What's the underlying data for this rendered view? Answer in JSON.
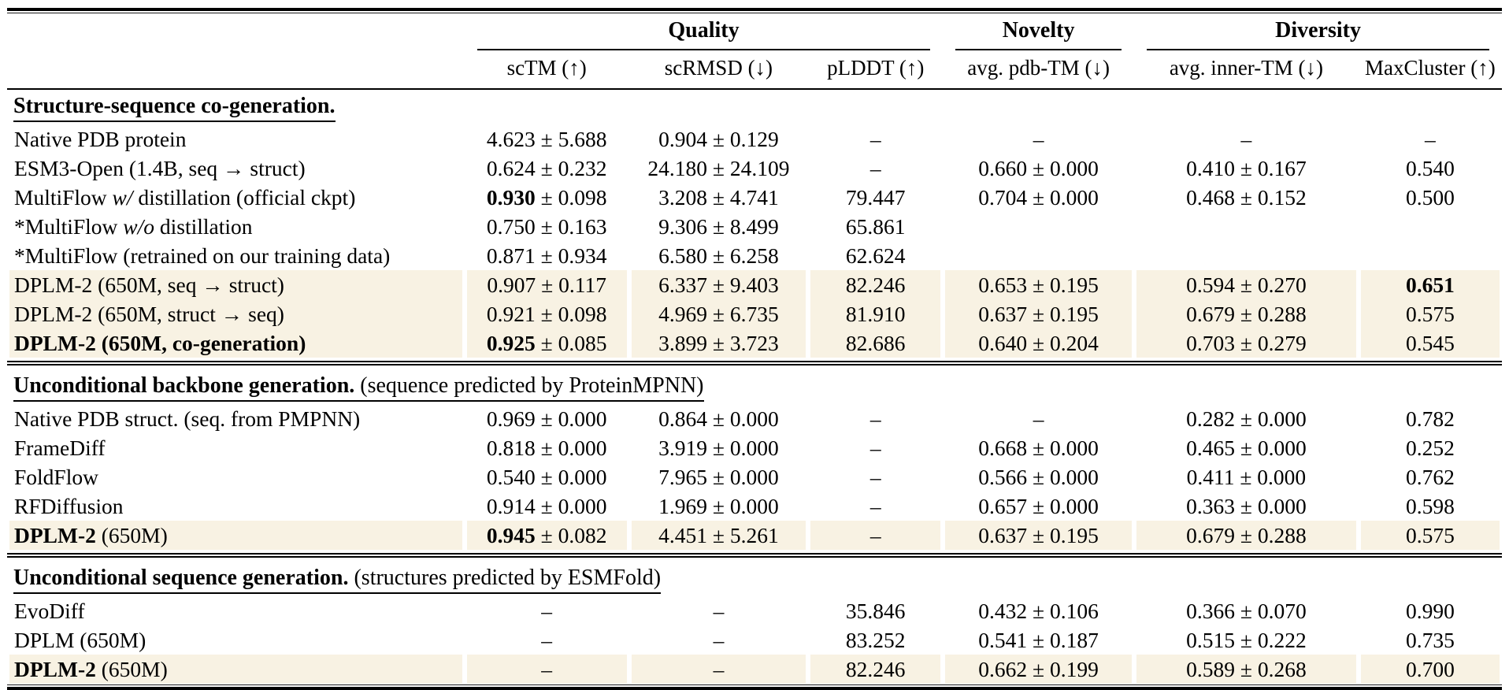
{
  "colors": {
    "highlight": "#f8f2e3",
    "rule": "#000000",
    "background": "#ffffff"
  },
  "table": {
    "groups": [
      {
        "label": "Quality",
        "span": 3
      },
      {
        "label": "Novelty",
        "span": 1
      },
      {
        "label": "Diversity",
        "span": 2
      }
    ],
    "columns": [
      "scTM (↑)",
      "scRMSD (↓)",
      "pLDDT (↑)",
      "avg. pdb-TM (↓)",
      "avg. inner-TM (↓)",
      "MaxCluster (↑)"
    ],
    "sections": [
      {
        "title": [
          {
            "t": "Structure-sequence co-generation.",
            "b": true
          }
        ],
        "rows": [
          {
            "name": [
              {
                "t": "Native PDB protein"
              }
            ],
            "hl": false,
            "cells": [
              {
                "v": "4.623",
                "pm": "5.688"
              },
              {
                "v": "0.904",
                "pm": "0.129"
              },
              {
                "v": "–"
              },
              {
                "v": "–"
              },
              {
                "v": "–"
              },
              {
                "v": "–"
              }
            ]
          },
          {
            "name": [
              {
                "t": "ESM3-Open (1.4B, seq → struct)"
              }
            ],
            "hl": false,
            "cells": [
              {
                "v": "0.624",
                "pm": "0.232"
              },
              {
                "v": "24.180",
                "pm": "24.109"
              },
              {
                "v": "–"
              },
              {
                "v": "0.660",
                "pm": "0.000"
              },
              {
                "v": "0.410",
                "pm": "0.167"
              },
              {
                "v": "0.540"
              }
            ]
          },
          {
            "name": [
              {
                "t": "MultiFlow "
              },
              {
                "t": "w/",
                "i": true
              },
              {
                "t": " distillation (official ckpt)"
              }
            ],
            "hl": false,
            "cells": [
              {
                "v": "0.930",
                "pm": "0.098",
                "vb": true
              },
              {
                "v": "3.208",
                "pm": "4.741"
              },
              {
                "v": "79.447"
              },
              {
                "v": "0.704",
                "pm": "0.000"
              },
              {
                "v": "0.468",
                "pm": "0.152"
              },
              {
                "v": "0.500"
              }
            ]
          },
          {
            "name": [
              {
                "t": "*MultiFlow "
              },
              {
                "t": "w/o",
                "i": true
              },
              {
                "t": " distillation"
              }
            ],
            "hl": false,
            "cells": [
              {
                "v": "0.750",
                "pm": "0.163"
              },
              {
                "v": "9.306",
                "pm": "8.499"
              },
              {
                "v": "65.861"
              },
              null,
              null,
              null
            ]
          },
          {
            "name": [
              {
                "t": "*MultiFlow (retrained on our training data)"
              }
            ],
            "hl": false,
            "cells": [
              {
                "v": "0.871",
                "pm": "0.934"
              },
              {
                "v": "6.580",
                "pm": "6.258"
              },
              {
                "v": "62.624"
              },
              null,
              null,
              null
            ]
          },
          {
            "name": [
              {
                "t": "DPLM-2 (650M, seq → struct)"
              }
            ],
            "hl": true,
            "cells": [
              {
                "v": "0.907",
                "pm": "0.117"
              },
              {
                "v": "6.337",
                "pm": "9.403"
              },
              {
                "v": "82.246"
              },
              {
                "v": "0.653",
                "pm": "0.195"
              },
              {
                "v": "0.594",
                "pm": "0.270"
              },
              {
                "v": "0.651",
                "vb": true
              }
            ]
          },
          {
            "name": [
              {
                "t": "DPLM-2 (650M, struct → seq)"
              }
            ],
            "hl": true,
            "cells": [
              {
                "v": "0.921",
                "pm": "0.098"
              },
              {
                "v": "4.969",
                "pm": "6.735"
              },
              {
                "v": "81.910"
              },
              {
                "v": "0.637",
                "pm": "0.195"
              },
              {
                "v": "0.679",
                "pm": "0.288"
              },
              {
                "v": "0.575"
              }
            ]
          },
          {
            "name": [
              {
                "t": "DPLM-2 (650M, co-generation)",
                "b": true
              }
            ],
            "hl": true,
            "cells": [
              {
                "v": "0.925",
                "pm": "0.085",
                "vb": true
              },
              {
                "v": "3.899",
                "pm": "3.723"
              },
              {
                "v": "82.686"
              },
              {
                "v": "0.640",
                "pm": "0.204"
              },
              {
                "v": "0.703",
                "pm": "0.279"
              },
              {
                "v": "0.545"
              }
            ]
          }
        ]
      },
      {
        "title": [
          {
            "t": "Unconditional backbone generation.",
            "b": true
          },
          {
            "t": " (sequence predicted by ProteinMPNN)"
          }
        ],
        "rows": [
          {
            "name": [
              {
                "t": "Native PDB struct. (seq. from PMPNN)"
              }
            ],
            "hl": false,
            "cells": [
              {
                "v": "0.969",
                "pm": "0.000"
              },
              {
                "v": "0.864",
                "pm": "0.000"
              },
              {
                "v": "–"
              },
              {
                "v": "–"
              },
              {
                "v": "0.282",
                "pm": "0.000"
              },
              {
                "v": "0.782"
              }
            ]
          },
          {
            "name": [
              {
                "t": "FrameDiff"
              }
            ],
            "hl": false,
            "cells": [
              {
                "v": "0.818",
                "pm": "0.000"
              },
              {
                "v": "3.919",
                "pm": "0.000"
              },
              {
                "v": "–"
              },
              {
                "v": "0.668",
                "pm": "0.000"
              },
              {
                "v": "0.465",
                "pm": "0.000"
              },
              {
                "v": "0.252"
              }
            ]
          },
          {
            "name": [
              {
                "t": "FoldFlow"
              }
            ],
            "hl": false,
            "cells": [
              {
                "v": "0.540",
                "pm": "0.000"
              },
              {
                "v": "7.965",
                "pm": "0.000"
              },
              {
                "v": "–"
              },
              {
                "v": "0.566",
                "pm": "0.000"
              },
              {
                "v": "0.411",
                "pm": "0.000"
              },
              {
                "v": "0.762"
              }
            ]
          },
          {
            "name": [
              {
                "t": "RFDiffusion"
              }
            ],
            "hl": false,
            "cells": [
              {
                "v": "0.914",
                "pm": "0.000"
              },
              {
                "v": "1.969",
                "pm": "0.000"
              },
              {
                "v": "–"
              },
              {
                "v": "0.657",
                "pm": "0.000"
              },
              {
                "v": "0.363",
                "pm": "0.000"
              },
              {
                "v": "0.598"
              }
            ]
          },
          {
            "name": [
              {
                "t": "DPLM-2",
                "b": true
              },
              {
                "t": " (650M)"
              }
            ],
            "hl": true,
            "cells": [
              {
                "v": "0.945",
                "pm": "0.082",
                "vb": true
              },
              {
                "v": "4.451",
                "pm": "5.261"
              },
              {
                "v": "–"
              },
              {
                "v": "0.637",
                "pm": "0.195"
              },
              {
                "v": "0.679",
                "pm": "0.288"
              },
              {
                "v": "0.575"
              }
            ]
          }
        ]
      },
      {
        "title": [
          {
            "t": "Unconditional sequence generation.",
            "b": true
          },
          {
            "t": " (structures predicted by ESMFold)"
          }
        ],
        "rows": [
          {
            "name": [
              {
                "t": "EvoDiff"
              }
            ],
            "hl": false,
            "cells": [
              {
                "v": "–"
              },
              {
                "v": "–"
              },
              {
                "v": "35.846"
              },
              {
                "v": "0.432",
                "pm": "0.106"
              },
              {
                "v": "0.366",
                "pm": "0.070"
              },
              {
                "v": "0.990"
              }
            ]
          },
          {
            "name": [
              {
                "t": "DPLM (650M)"
              }
            ],
            "hl": false,
            "cells": [
              {
                "v": "–"
              },
              {
                "v": "–"
              },
              {
                "v": "83.252"
              },
              {
                "v": "0.541",
                "pm": "0.187"
              },
              {
                "v": "0.515",
                "pm": "0.222"
              },
              {
                "v": "0.735"
              }
            ]
          },
          {
            "name": [
              {
                "t": "DPLM-2",
                "b": true
              },
              {
                "t": " (650M)"
              }
            ],
            "hl": true,
            "cells": [
              {
                "v": "–"
              },
              {
                "v": "–"
              },
              {
                "v": "82.246"
              },
              {
                "v": "0.662",
                "pm": "0.199"
              },
              {
                "v": "0.589",
                "pm": "0.268"
              },
              {
                "v": "0.700"
              }
            ]
          }
        ]
      }
    ]
  }
}
